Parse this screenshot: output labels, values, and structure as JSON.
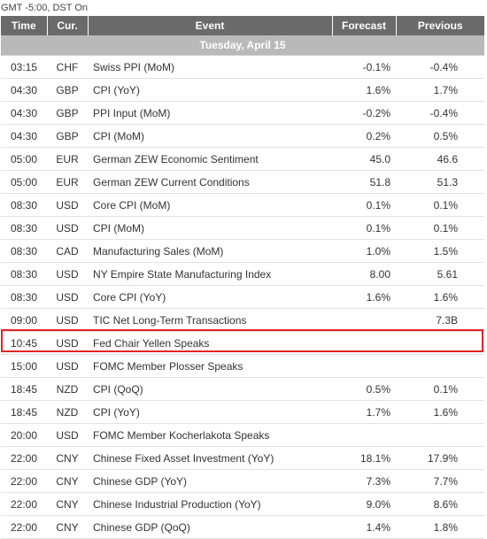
{
  "timezone_label": "GMT -5:00, DST On",
  "columns": {
    "time": "Time",
    "currency": "Cur.",
    "event": "Event",
    "forecast": "Forecast",
    "previous": "Previous"
  },
  "date_header": "Tuesday, April 15",
  "highlight_color": "#e02424",
  "highlighted_row_index": 11,
  "events": [
    {
      "time": "03:15",
      "currency": "CHF",
      "event": "Swiss PPI (MoM)",
      "forecast": "-0.1%",
      "previous": "-0.4%"
    },
    {
      "time": "04:30",
      "currency": "GBP",
      "event": "CPI (YoY)",
      "forecast": "1.6%",
      "previous": "1.7%"
    },
    {
      "time": "04:30",
      "currency": "GBP",
      "event": "PPI Input (MoM)",
      "forecast": "-0.2%",
      "previous": "-0.4%"
    },
    {
      "time": "04:30",
      "currency": "GBP",
      "event": "CPI (MoM)",
      "forecast": "0.2%",
      "previous": "0.5%"
    },
    {
      "time": "05:00",
      "currency": "EUR",
      "event": "German ZEW Economic Sentiment",
      "forecast": "45.0",
      "previous": "46.6"
    },
    {
      "time": "05:00",
      "currency": "EUR",
      "event": "German ZEW Current Conditions",
      "forecast": "51.8",
      "previous": "51.3"
    },
    {
      "time": "08:30",
      "currency": "USD",
      "event": "Core CPI (MoM)",
      "forecast": "0.1%",
      "previous": "0.1%"
    },
    {
      "time": "08:30",
      "currency": "USD",
      "event": "CPI (MoM)",
      "forecast": "0.1%",
      "previous": "0.1%"
    },
    {
      "time": "08:30",
      "currency": "CAD",
      "event": "Manufacturing Sales (MoM)",
      "forecast": "1.0%",
      "previous": "1.5%"
    },
    {
      "time": "08:30",
      "currency": "USD",
      "event": "NY Empire State Manufacturing Index",
      "forecast": "8.00",
      "previous": "5.61"
    },
    {
      "time": "08:30",
      "currency": "USD",
      "event": "Core CPI (YoY)",
      "forecast": "1.6%",
      "previous": "1.6%"
    },
    {
      "time": "09:00",
      "currency": "USD",
      "event": "TIC Net Long-Term Transactions",
      "forecast": "",
      "previous": "7.3B"
    },
    {
      "time": "10:45",
      "currency": "USD",
      "event": "Fed Chair Yellen Speaks",
      "forecast": "",
      "previous": ""
    },
    {
      "time": "15:00",
      "currency": "USD",
      "event": "FOMC Member Plosser Speaks",
      "forecast": "",
      "previous": ""
    },
    {
      "time": "18:45",
      "currency": "NZD",
      "event": "CPI (QoQ)",
      "forecast": "0.5%",
      "previous": "0.1%"
    },
    {
      "time": "18:45",
      "currency": "NZD",
      "event": "CPI (YoY)",
      "forecast": "1.7%",
      "previous": "1.6%"
    },
    {
      "time": "20:00",
      "currency": "USD",
      "event": "FOMC Member Kocherlakota Speaks",
      "forecast": "",
      "previous": ""
    },
    {
      "time": "22:00",
      "currency": "CNY",
      "event": "Chinese Fixed Asset Investment (YoY)",
      "forecast": "18.1%",
      "previous": "17.9%"
    },
    {
      "time": "22:00",
      "currency": "CNY",
      "event": "Chinese GDP (YoY)",
      "forecast": "7.3%",
      "previous": "7.7%"
    },
    {
      "time": "22:00",
      "currency": "CNY",
      "event": "Chinese Industrial Production (YoY)",
      "forecast": "9.0%",
      "previous": "8.6%"
    },
    {
      "time": "22:00",
      "currency": "CNY",
      "event": "Chinese GDP (QoQ)",
      "forecast": "1.4%",
      "previous": "1.8%"
    }
  ]
}
